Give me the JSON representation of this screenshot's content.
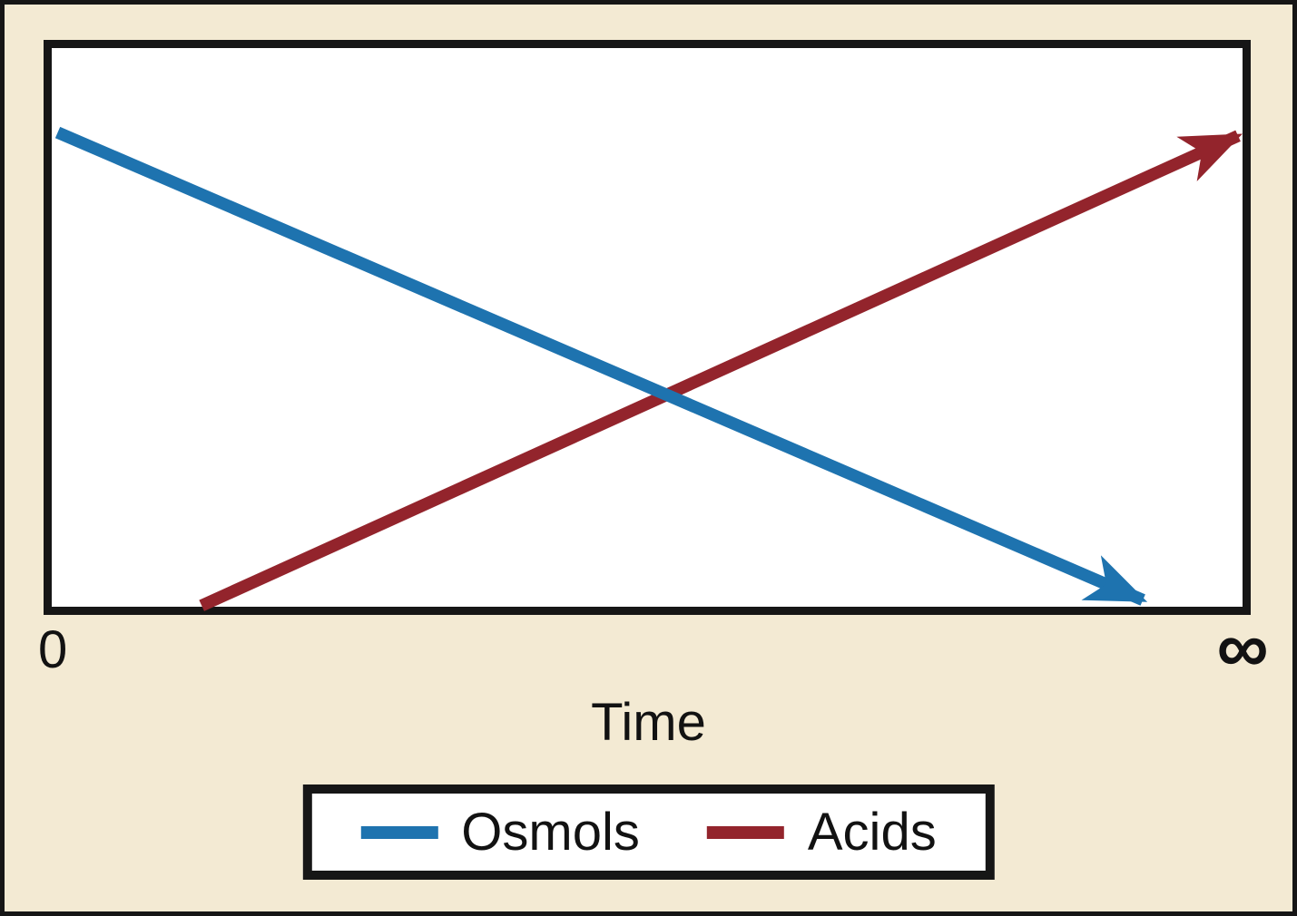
{
  "colors": {
    "background": "#F3EAD3",
    "frame": "#161616",
    "plot_background": "#FFFFFF",
    "text": "#121212"
  },
  "chart_data": {
    "type": "line",
    "title": "",
    "xlabel": "Time",
    "ylabel": "",
    "x_tick_labels": [
      "0",
      "∞"
    ],
    "grid": false,
    "legend_position": "bottom-center",
    "plot_frame": true,
    "series": [
      {
        "name": "Osmols",
        "color": "#1E73AF",
        "trend": "decreasing",
        "arrow_end": true,
        "points_rel": [
          [
            0.005,
            0.849
          ],
          [
            0.917,
            0.012
          ]
        ]
      },
      {
        "name": "Acids",
        "color": "#93242C",
        "trend": "increasing",
        "arrow_end": true,
        "points_rel": [
          [
            0.126,
            0.002
          ],
          [
            0.997,
            0.843
          ]
        ]
      }
    ]
  }
}
